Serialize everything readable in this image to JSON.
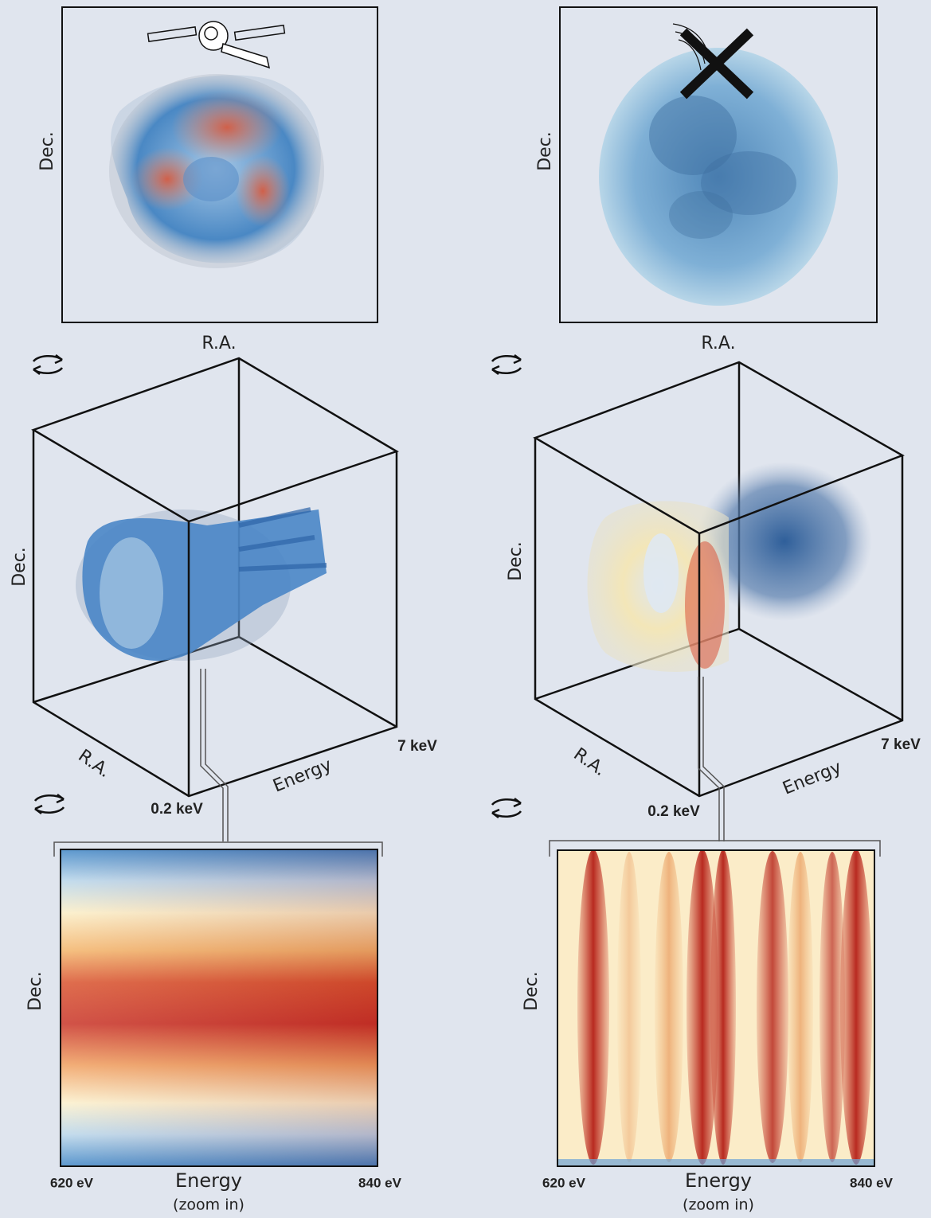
{
  "panels": [
    {
      "sky_map": {
        "x_label": "R.A.",
        "y_label": "Dec."
      },
      "cube": {
        "y_label": "Dec.",
        "x_label": "R.A.",
        "z_label": "Energy",
        "z_min_label": "0.2 keV",
        "z_max_label": "7 keV"
      },
      "zoom": {
        "y_label": "Dec.",
        "x_label": "Energy",
        "x_note": "(zoom in)",
        "x_min_label": "620 eV",
        "x_max_label": "840 eV"
      }
    },
    {
      "sky_map": {
        "x_label": "R.A.",
        "y_label": "Dec."
      },
      "cube": {
        "y_label": "Dec.",
        "x_label": "R.A.",
        "z_label": "Energy",
        "z_min_label": "0.2 keV",
        "z_max_label": "7 keV"
      },
      "zoom": {
        "y_label": "Dec.",
        "x_label": "Energy",
        "x_note": "(zoom in)",
        "x_min_label": "620 eV",
        "x_max_label": "840 eV"
      }
    }
  ]
}
